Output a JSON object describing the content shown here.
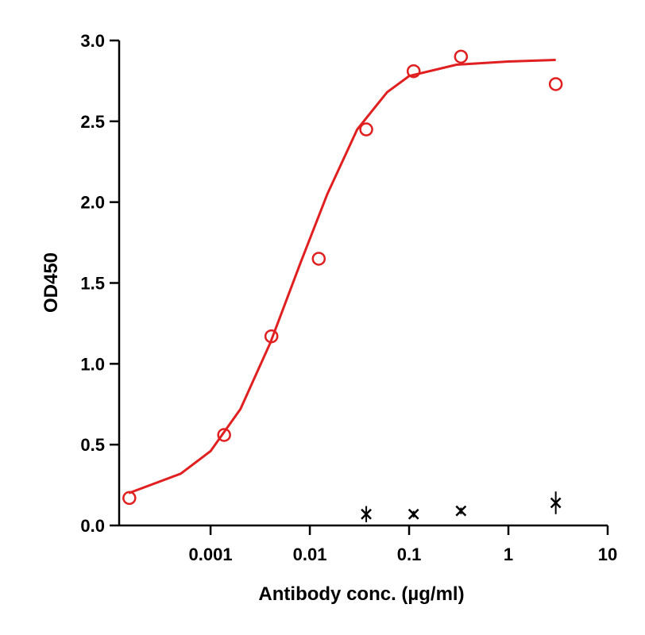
{
  "chart_data": {
    "type": "scatter",
    "xlabel": "Antibody conc. (µg/ml)",
    "ylabel": "OD450",
    "xscale": "log",
    "xlim": [
      0.00012,
      10
    ],
    "ylim": [
      0,
      3
    ],
    "xticks": [
      0.001,
      0.01,
      0.1,
      1,
      10
    ],
    "yticks": [
      {
        "value": 0,
        "label": "0.0"
      },
      {
        "value": 0.5,
        "label": "0.5"
      },
      {
        "value": 1,
        "label": "1.0"
      },
      {
        "value": 1.5,
        "label": "1.5"
      },
      {
        "value": 2,
        "label": "2.0"
      },
      {
        "value": 2.5,
        "label": "2.5"
      },
      {
        "value": 3,
        "label": "3.0"
      }
    ],
    "series": [
      {
        "marker": "line",
        "color": "#e02020",
        "x": [
          0.00015,
          0.0005,
          0.001,
          0.002,
          0.004,
          0.008,
          0.015,
          0.03,
          0.06,
          0.1,
          0.3,
          1,
          3
        ],
        "values": [
          0.2,
          0.32,
          0.46,
          0.72,
          1.13,
          1.62,
          2.05,
          2.45,
          2.68,
          2.78,
          2.85,
          2.87,
          2.88
        ]
      },
      {
        "marker": "circle",
        "color": "#e02020",
        "x": [
          0.000152,
          0.00137,
          0.0041,
          0.0123,
          0.037,
          0.111,
          0.333,
          3
        ],
        "values": [
          0.17,
          0.56,
          1.17,
          1.65,
          2.45,
          2.81,
          2.9,
          2.73
        ]
      },
      {
        "marker": "cross",
        "color": "#000000",
        "x": [
          0.037,
          0.111,
          0.333,
          3
        ],
        "values": [
          0.07,
          0.07,
          0.09,
          0.14
        ],
        "errors": [
          0.05,
          0.02,
          0.02,
          0.07
        ]
      }
    ]
  }
}
